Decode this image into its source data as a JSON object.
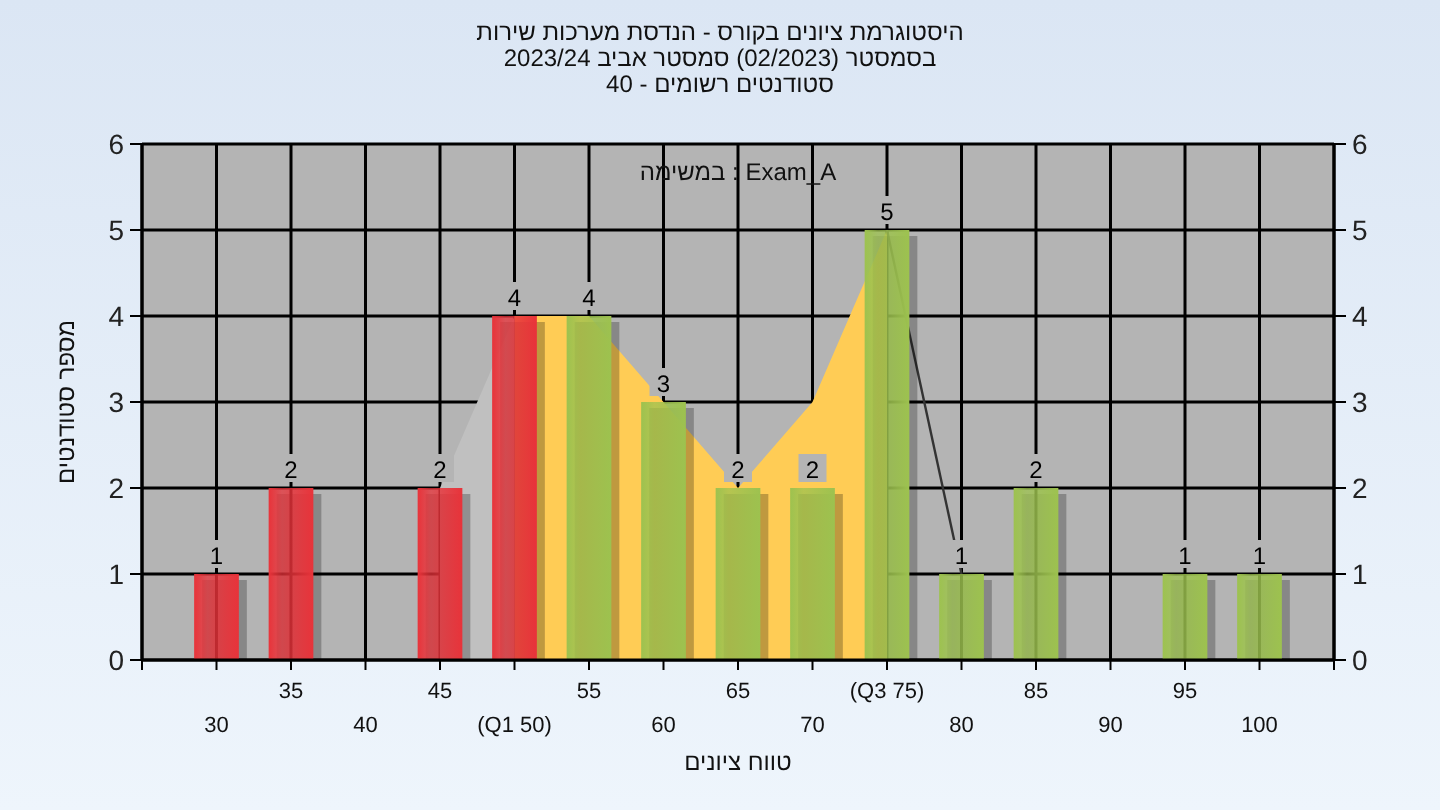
{
  "chart_data": {
    "type": "bar",
    "title": [
      "היסטוגרמת ציונים בקורס - הנדסת מערכות שירות",
      "בסמסטר  (02/2023)  סמסטר אביב 2023/24",
      "סטודנטים רשומים - 40"
    ],
    "xlabel": "טווח ציונים",
    "ylabel": "מספר סטודנטים",
    "annotations": [
      "במשימה : Exam_A"
    ],
    "categories": [
      "30",
      "35",
      "40",
      "45",
      "(Q1 50)",
      "55",
      "60",
      "65",
      "70",
      "(Q3 75)",
      "80",
      "85",
      "90",
      "95",
      "100"
    ],
    "series": [
      {
        "type": "area",
        "color": "#ffcc55",
        "values": [
          null,
          null,
          null,
          null,
          4,
          4,
          3,
          2,
          3,
          5,
          null,
          null,
          null,
          null,
          null
        ]
      },
      {
        "type": "area",
        "color": "#c0c0c0",
        "values": [
          null,
          null,
          null,
          2,
          4,
          null,
          null,
          null,
          null,
          null,
          null,
          null,
          null,
          null,
          null
        ]
      },
      {
        "type": "line",
        "color": "#333333",
        "values": [
          null,
          null,
          null,
          null,
          null,
          null,
          null,
          null,
          null,
          5,
          1,
          null,
          null,
          null,
          null
        ]
      },
      {
        "values": [
          1,
          2,
          null,
          2,
          4,
          4,
          3,
          2,
          2,
          5,
          1,
          2,
          null,
          1,
          1
        ],
        "value_labels": [
          "1",
          "2",
          null,
          "2",
          "4",
          "4",
          "3",
          "2",
          "2",
          "5",
          "1",
          "2",
          null,
          "1",
          "1"
        ],
        "colors": [
          "#e8333a",
          "#e8333a",
          null,
          "#e8333a",
          "#e8333a",
          "#9dc24f",
          "#9dc24f",
          "#9dc24f",
          "#9dc24f",
          "#9dc24f",
          "#9dc24f",
          "#9dc24f",
          null,
          "#9dc24f",
          "#9dc24f"
        ]
      }
    ],
    "ylim": [
      0,
      6
    ],
    "yticks": [
      0,
      1,
      2,
      3,
      4,
      5,
      6
    ],
    "y2lim": [
      0,
      6
    ],
    "y2ticks": [
      0,
      1,
      2,
      3,
      4,
      5,
      6
    ],
    "grid": true
  }
}
